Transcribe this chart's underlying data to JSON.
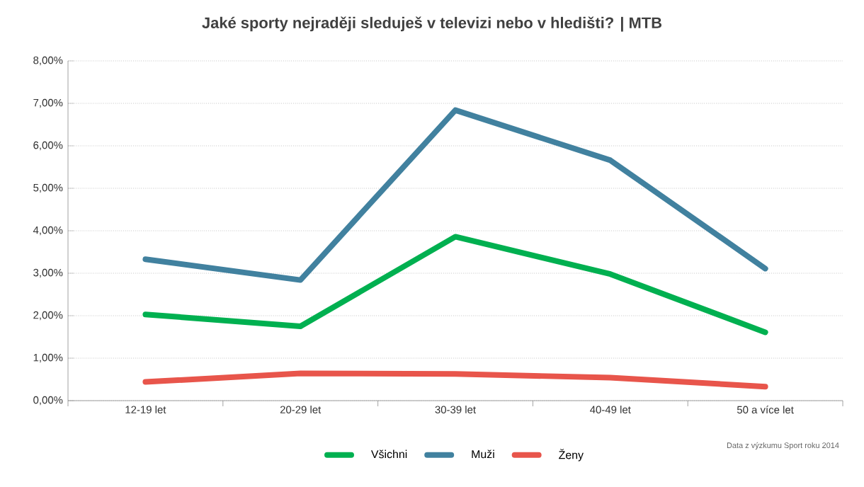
{
  "chart_data": {
    "type": "line",
    "title": "Jaké sporty nejraději sleduješ v televizi nebo v hledišti? | MTB",
    "categories": [
      "12-19 let",
      "20-29 let",
      "30-39 let",
      "40-49 let",
      "50 a více let"
    ],
    "series": [
      {
        "name": "Všichni",
        "color": "#00b050",
        "values": [
          2.03,
          1.75,
          3.86,
          2.98,
          1.61
        ]
      },
      {
        "name": "Muži",
        "color": "#41819f",
        "values": [
          3.33,
          2.84,
          6.84,
          5.66,
          3.11
        ]
      },
      {
        "name": "Ženy",
        "color": "#e8554b",
        "values": [
          0.44,
          0.64,
          0.63,
          0.54,
          0.33
        ]
      }
    ],
    "ylim": [
      0,
      8
    ],
    "yticks": [
      {
        "value": 0,
        "label": "0,00%"
      },
      {
        "value": 1,
        "label": "1,00%"
      },
      {
        "value": 2,
        "label": "2,00%"
      },
      {
        "value": 3,
        "label": "3,00%"
      },
      {
        "value": 4,
        "label": "4,00%"
      },
      {
        "value": 5,
        "label": "5,00%"
      },
      {
        "value": 6,
        "label": "6,00%"
      },
      {
        "value": 7,
        "label": "7,00%"
      },
      {
        "value": 8,
        "label": "8,00%"
      }
    ],
    "grid": "y",
    "legend": "bottom",
    "marker": "none",
    "line_style": "solid",
    "annotations": [
      "Data z výzkumu Sport roku 2014"
    ]
  }
}
